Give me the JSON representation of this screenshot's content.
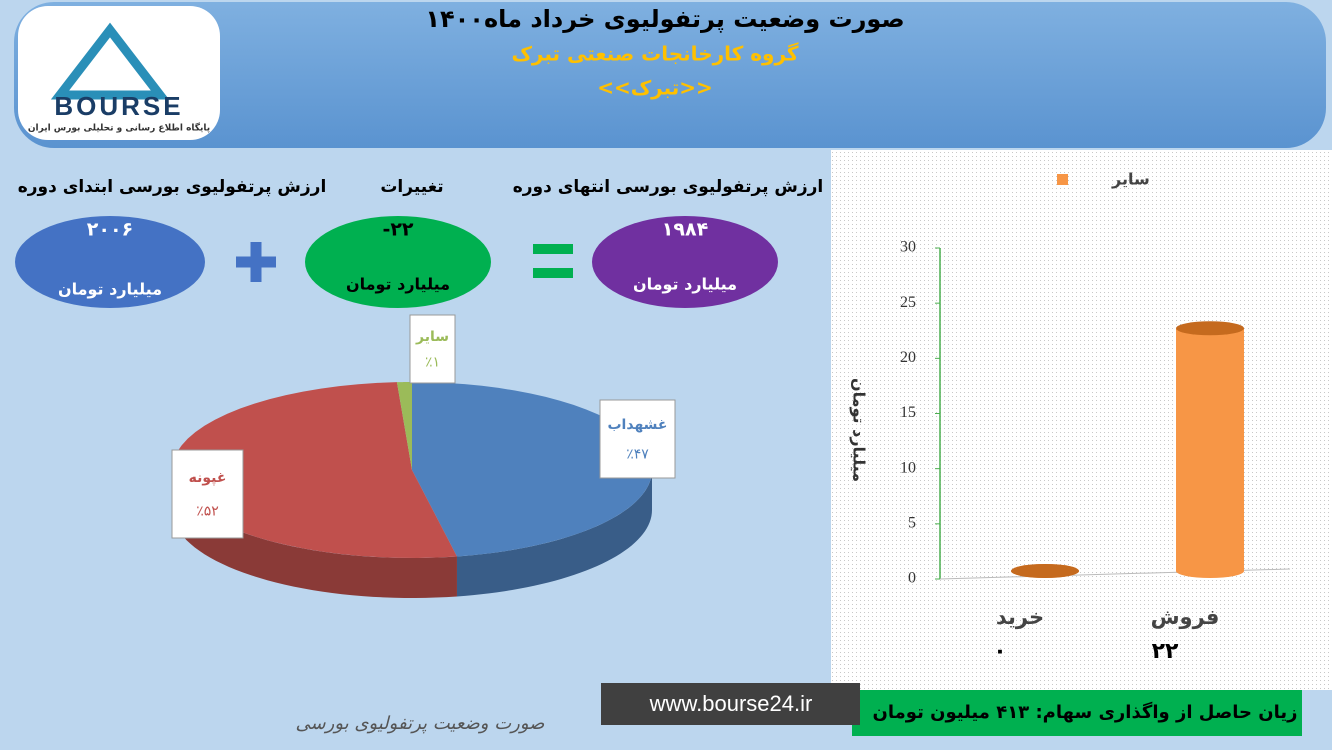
{
  "header": {
    "title": "صورت وضعیت پرتفولیوی خرداد ماه۱۴۰۰",
    "subtitle": "گروه کارخانجات صنعتی تبرک",
    "symbol": "<<تبرک>>"
  },
  "logo": {
    "name": "BOURSE",
    "tagline": "پایگاه اطلاع رسانی و تحلیلی بورس ایران"
  },
  "summary": {
    "start": {
      "label": "ارزش پرتفولیوی بورسی ابتدای دوره",
      "value": "۲۰۰۶",
      "unit": "میلیارد تومان"
    },
    "change": {
      "label": "تغییرات",
      "value": "-۲۲",
      "unit": "میلیارد تومان"
    },
    "end": {
      "label": "ارزش پرتفولیوی بورسی انتهای دوره",
      "value": "۱۹۸۴",
      "unit": "میلیارد تومان"
    }
  },
  "chart_data": [
    {
      "type": "pie",
      "categories": [
        "غشهداب",
        "غپونه",
        "سایر"
      ],
      "values": [
        47,
        52,
        1
      ],
      "value_labels": [
        "٪۴۷",
        "٪۵۲",
        "٪۱"
      ],
      "colors": [
        "#4f81bd",
        "#c0504d",
        "#9bbb59"
      ]
    },
    {
      "type": "bar",
      "categories": [
        "خرید",
        "فروش"
      ],
      "series": [
        {
          "name": "سایر",
          "color": "#f79646",
          "values": [
            0,
            22
          ],
          "value_labels": [
            "۰",
            "۲۲"
          ]
        }
      ],
      "ylabel": "میلیارد تومان",
      "ylim": [
        0,
        30
      ],
      "yticks": [
        0,
        5,
        10,
        15,
        20,
        25,
        30
      ],
      "grid": false,
      "legend": "top"
    }
  ],
  "footer": {
    "result": "زیان حاصل از واگذاری سهام: ۴۱۳ میلیون تومان",
    "url": "www.bourse24.ir",
    "caption": "صورت وضعیت پرتفولیوی بورسی"
  }
}
